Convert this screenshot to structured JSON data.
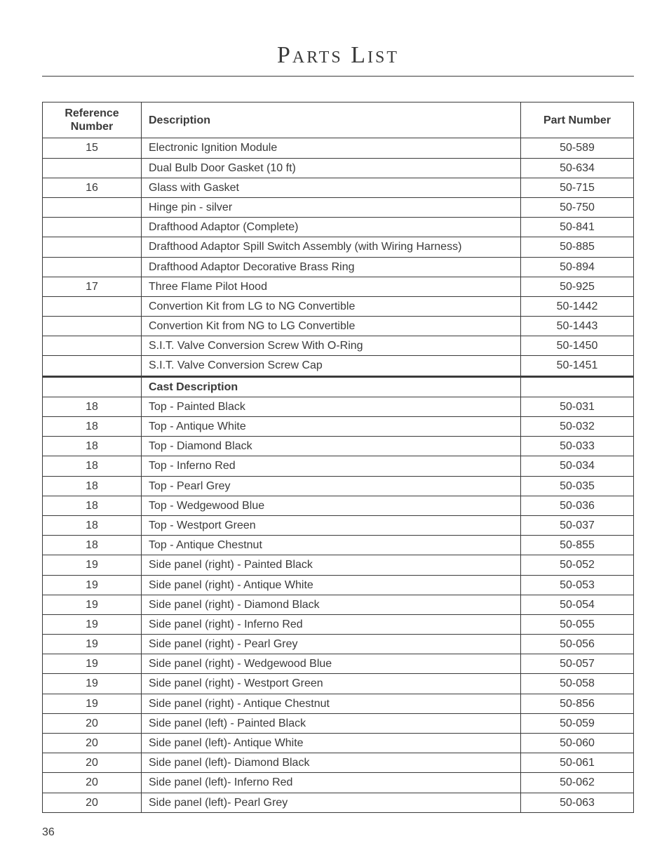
{
  "title": "Parts List",
  "pageNumber": "36",
  "table": {
    "headers": {
      "ref": "Reference Number",
      "desc": "Description",
      "part": "Part Number"
    },
    "sectionHeader": {
      "ref": "",
      "desc": "Cast Description",
      "part": ""
    },
    "rowsA": [
      {
        "ref": "15",
        "desc": "Electronic Ignition Module",
        "part": "50-589"
      },
      {
        "ref": "",
        "desc": "Dual Bulb Door Gasket (10 ft)",
        "part": "50-634"
      },
      {
        "ref": "16",
        "desc": "Glass with Gasket",
        "part": "50-715"
      },
      {
        "ref": "",
        "desc": "Hinge pin - silver",
        "part": "50-750"
      },
      {
        "ref": "",
        "desc": "Drafthood Adaptor (Complete)",
        "part": "50-841"
      },
      {
        "ref": "",
        "desc": "Drafthood Adaptor Spill Switch Assembly (with Wiring Harness)",
        "part": "50-885"
      },
      {
        "ref": "",
        "desc": "Drafthood Adaptor Decorative Brass Ring",
        "part": "50-894"
      },
      {
        "ref": "17",
        "desc": "Three Flame Pilot Hood",
        "part": "50-925"
      },
      {
        "ref": "",
        "desc": "Convertion Kit from LG to NG Convertible",
        "part": "50-1442"
      },
      {
        "ref": "",
        "desc": "Convertion Kit from NG to LG Convertible",
        "part": "50-1443"
      },
      {
        "ref": "",
        "desc": "S.I.T. Valve Conversion Screw With O-Ring",
        "part": "50-1450"
      },
      {
        "ref": "",
        "desc": "S.I.T. Valve Conversion Screw Cap",
        "part": "50-1451"
      }
    ],
    "rowsB": [
      {
        "ref": "18",
        "desc": "Top - Painted Black",
        "part": "50-031"
      },
      {
        "ref": "18",
        "desc": "Top - Antique White",
        "part": "50-032"
      },
      {
        "ref": "18",
        "desc": "Top - Diamond Black",
        "part": "50-033"
      },
      {
        "ref": "18",
        "desc": "Top - Inferno Red",
        "part": "50-034"
      },
      {
        "ref": "18",
        "desc": "Top - Pearl Grey",
        "part": "50-035"
      },
      {
        "ref": "18",
        "desc": "Top - Wedgewood Blue",
        "part": "50-036"
      },
      {
        "ref": "18",
        "desc": "Top - Westport Green",
        "part": "50-037"
      },
      {
        "ref": "18",
        "desc": "Top - Antique Chestnut",
        "part": "50-855"
      },
      {
        "ref": "19",
        "desc": "Side panel (right) - Painted Black",
        "part": "50-052"
      },
      {
        "ref": "19",
        "desc": "Side panel (right) - Antique White",
        "part": "50-053"
      },
      {
        "ref": "19",
        "desc": "Side panel (right) - Diamond Black",
        "part": "50-054"
      },
      {
        "ref": "19",
        "desc": "Side panel (right) - Inferno Red",
        "part": "50-055"
      },
      {
        "ref": "19",
        "desc": "Side panel (right) - Pearl Grey",
        "part": "50-056"
      },
      {
        "ref": "19",
        "desc": "Side panel (right) - Wedgewood Blue",
        "part": "50-057"
      },
      {
        "ref": "19",
        "desc": "Side panel (right) - Westport Green",
        "part": "50-058"
      },
      {
        "ref": "19",
        "desc": "Side panel (right) - Antique Chestnut",
        "part": "50-856"
      },
      {
        "ref": "20",
        "desc": "Side panel (left) - Painted Black",
        "part": "50-059"
      },
      {
        "ref": "20",
        "desc": "Side panel (left)- Antique White",
        "part": "50-060"
      },
      {
        "ref": "20",
        "desc": "Side panel (left)- Diamond Black",
        "part": "50-061"
      },
      {
        "ref": "20",
        "desc": "Side panel (left)- Inferno Red",
        "part": "50-062"
      },
      {
        "ref": "20",
        "desc": "Side panel (left)- Pearl Grey",
        "part": "50-063"
      }
    ]
  }
}
